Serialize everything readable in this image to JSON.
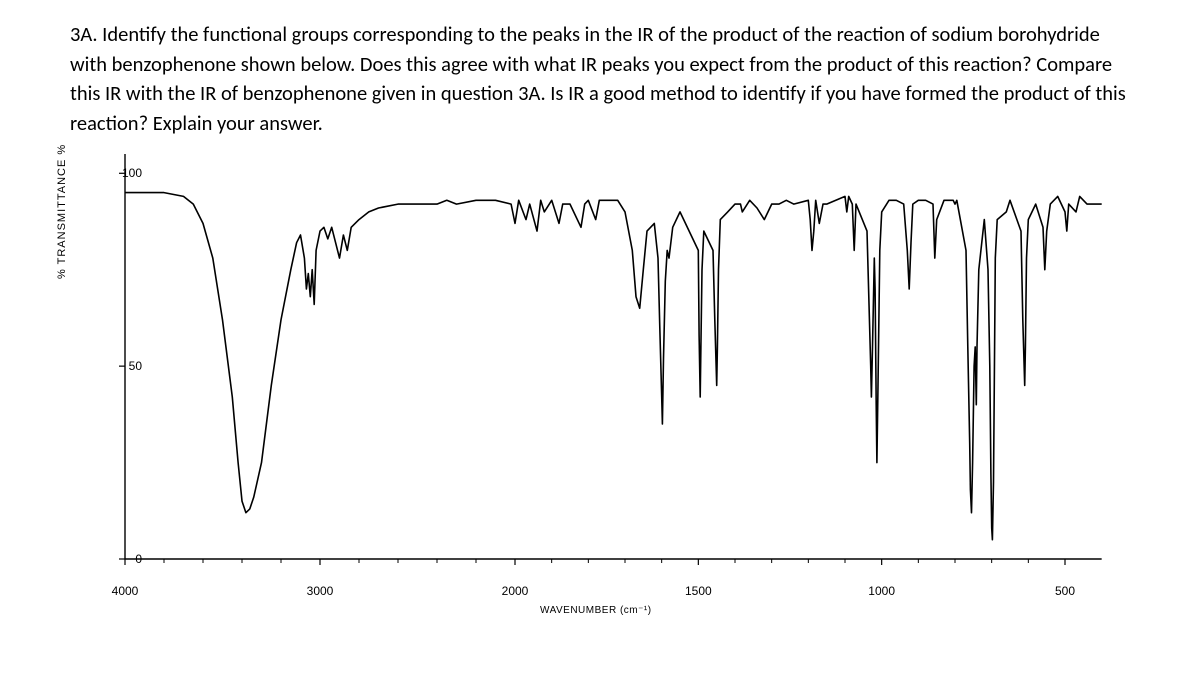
{
  "question": {
    "text": "3A. Identify the functional groups corresponding to the peaks in the IR of the product of the reaction of sodium borohydride with benzophenone shown below.  Does this agree with what IR peaks you expect from the product of this reaction? Compare this IR with the IR of benzophenone given in question 3A.  Is IR a good method to identify if you have formed the product of this reaction? Explain your answer."
  },
  "chart": {
    "type": "line",
    "y_label": "% TRANSMITTANCE %",
    "x_label": "WAVENUMBER (cm⁻¹)",
    "y_ticks": [
      "100",
      "50",
      "0"
    ],
    "y_tick_vals": [
      100,
      50,
      0
    ],
    "x_ticks": [
      "4000",
      "3000",
      "2000",
      "1500",
      "1000",
      "500"
    ],
    "x_tick_vals": [
      4000,
      3000,
      2000,
      1500,
      1000,
      500
    ],
    "x_range": [
      4000,
      400
    ],
    "y_range": [
      0,
      105
    ],
    "stroke_color": "#000000",
    "stroke_width": 1.6,
    "axis_color": "#000000",
    "background": "#ffffff",
    "x_break": 2000,
    "data": [
      [
        4000,
        95
      ],
      [
        3900,
        95
      ],
      [
        3800,
        95
      ],
      [
        3700,
        94
      ],
      [
        3650,
        92
      ],
      [
        3600,
        87
      ],
      [
        3550,
        78
      ],
      [
        3500,
        62
      ],
      [
        3450,
        42
      ],
      [
        3420,
        25
      ],
      [
        3400,
        15
      ],
      [
        3380,
        12
      ],
      [
        3360,
        13
      ],
      [
        3340,
        16
      ],
      [
        3300,
        25
      ],
      [
        3250,
        45
      ],
      [
        3200,
        62
      ],
      [
        3150,
        75
      ],
      [
        3120,
        82
      ],
      [
        3100,
        84
      ],
      [
        3080,
        78
      ],
      [
        3070,
        70
      ],
      [
        3060,
        74
      ],
      [
        3050,
        68
      ],
      [
        3040,
        75
      ],
      [
        3030,
        66
      ],
      [
        3020,
        80
      ],
      [
        3000,
        85
      ],
      [
        2980,
        86
      ],
      [
        2960,
        83
      ],
      [
        2940,
        86
      ],
      [
        2920,
        82
      ],
      [
        2900,
        78
      ],
      [
        2880,
        84
      ],
      [
        2860,
        80
      ],
      [
        2840,
        86
      ],
      [
        2800,
        88
      ],
      [
        2750,
        90
      ],
      [
        2700,
        91
      ],
      [
        2600,
        92
      ],
      [
        2500,
        92
      ],
      [
        2400,
        92
      ],
      [
        2350,
        93
      ],
      [
        2300,
        92
      ],
      [
        2200,
        93
      ],
      [
        2100,
        93
      ],
      [
        2020,
        92
      ],
      [
        2000,
        87
      ],
      [
        1990,
        93
      ],
      [
        1970,
        88
      ],
      [
        1960,
        92
      ],
      [
        1940,
        85
      ],
      [
        1930,
        93
      ],
      [
        1920,
        90
      ],
      [
        1900,
        93
      ],
      [
        1880,
        87
      ],
      [
        1870,
        92
      ],
      [
        1850,
        92
      ],
      [
        1820,
        86
      ],
      [
        1810,
        92
      ],
      [
        1800,
        93
      ],
      [
        1780,
        88
      ],
      [
        1770,
        93
      ],
      [
        1750,
        93
      ],
      [
        1720,
        93
      ],
      [
        1700,
        90
      ],
      [
        1680,
        80
      ],
      [
        1670,
        68
      ],
      [
        1660,
        65
      ],
      [
        1650,
        75
      ],
      [
        1640,
        85
      ],
      [
        1620,
        87
      ],
      [
        1610,
        78
      ],
      [
        1605,
        60
      ],
      [
        1600,
        42
      ],
      [
        1598,
        35
      ],
      [
        1595,
        52
      ],
      [
        1590,
        72
      ],
      [
        1585,
        80
      ],
      [
        1580,
        78
      ],
      [
        1570,
        86
      ],
      [
        1550,
        90
      ],
      [
        1500,
        80
      ],
      [
        1498,
        58
      ],
      [
        1495,
        42
      ],
      [
        1493,
        55
      ],
      [
        1490,
        75
      ],
      [
        1485,
        85
      ],
      [
        1460,
        80
      ],
      [
        1455,
        62
      ],
      [
        1450,
        45
      ],
      [
        1448,
        55
      ],
      [
        1445,
        75
      ],
      [
        1440,
        88
      ],
      [
        1420,
        90
      ],
      [
        1400,
        92
      ],
      [
        1385,
        92
      ],
      [
        1380,
        90
      ],
      [
        1360,
        93
      ],
      [
        1340,
        91
      ],
      [
        1320,
        88
      ],
      [
        1310,
        90
      ],
      [
        1300,
        92
      ],
      [
        1280,
        92
      ],
      [
        1260,
        93
      ],
      [
        1240,
        92
      ],
      [
        1200,
        93
      ],
      [
        1195,
        88
      ],
      [
        1190,
        80
      ],
      [
        1185,
        85
      ],
      [
        1180,
        93
      ],
      [
        1170,
        87
      ],
      [
        1160,
        92
      ],
      [
        1150,
        92
      ],
      [
        1100,
        94
      ],
      [
        1095,
        90
      ],
      [
        1090,
        94
      ],
      [
        1080,
        92
      ],
      [
        1075,
        80
      ],
      [
        1070,
        92
      ],
      [
        1040,
        85
      ],
      [
        1035,
        68
      ],
      [
        1030,
        50
      ],
      [
        1028,
        42
      ],
      [
        1025,
        55
      ],
      [
        1020,
        78
      ],
      [
        1018,
        70
      ],
      [
        1015,
        40
      ],
      [
        1013,
        25
      ],
      [
        1010,
        45
      ],
      [
        1005,
        80
      ],
      [
        1000,
        90
      ],
      [
        980,
        93
      ],
      [
        960,
        93
      ],
      [
        940,
        92
      ],
      [
        930,
        80
      ],
      [
        925,
        70
      ],
      [
        920,
        82
      ],
      [
        915,
        92
      ],
      [
        900,
        93
      ],
      [
        880,
        93
      ],
      [
        860,
        92
      ],
      [
        855,
        78
      ],
      [
        850,
        88
      ],
      [
        830,
        93
      ],
      [
        805,
        93
      ],
      [
        800,
        92
      ],
      [
        795,
        93
      ],
      [
        770,
        80
      ],
      [
        765,
        55
      ],
      [
        760,
        30
      ],
      [
        758,
        18
      ],
      [
        755,
        12
      ],
      [
        752,
        25
      ],
      [
        748,
        50
      ],
      [
        745,
        55
      ],
      [
        742,
        40
      ],
      [
        740,
        55
      ],
      [
        735,
        75
      ],
      [
        720,
        88
      ],
      [
        710,
        75
      ],
      [
        705,
        50
      ],
      [
        702,
        22
      ],
      [
        700,
        8
      ],
      [
        698,
        5
      ],
      [
        695,
        20
      ],
      [
        692,
        55
      ],
      [
        690,
        78
      ],
      [
        685,
        88
      ],
      [
        660,
        90
      ],
      [
        650,
        93
      ],
      [
        620,
        85
      ],
      [
        615,
        62
      ],
      [
        610,
        45
      ],
      [
        608,
        55
      ],
      [
        605,
        78
      ],
      [
        600,
        88
      ],
      [
        580,
        92
      ],
      [
        560,
        86
      ],
      [
        555,
        75
      ],
      [
        550,
        85
      ],
      [
        540,
        92
      ],
      [
        520,
        94
      ],
      [
        500,
        90
      ],
      [
        495,
        85
      ],
      [
        490,
        92
      ],
      [
        470,
        90
      ],
      [
        460,
        94
      ],
      [
        440,
        92
      ],
      [
        420,
        92
      ],
      [
        400,
        92
      ]
    ]
  }
}
